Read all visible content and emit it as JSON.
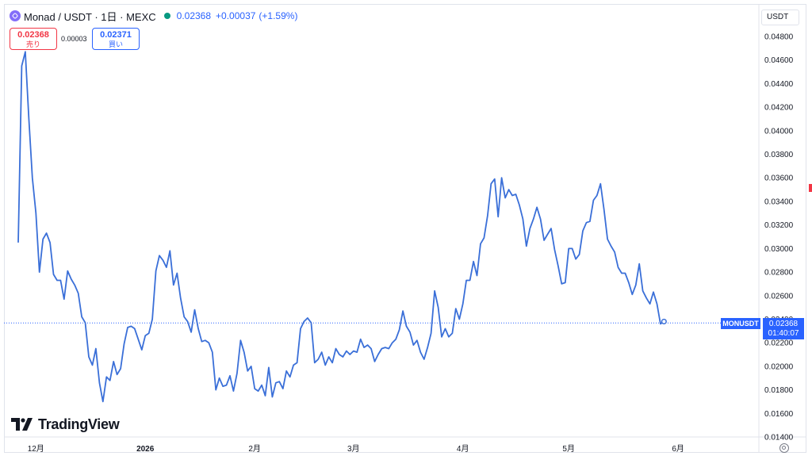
{
  "header": {
    "title": "Monad / USDT · 1日 · MEXC",
    "price": "0.02368",
    "change": "+0.00037",
    "change_pct": "(+1.59%)"
  },
  "trade": {
    "sell_price": "0.02368",
    "sell_label": "売り",
    "spread": "0.00003",
    "buy_price": "0.02371",
    "buy_label": "買い"
  },
  "currency": "USDT",
  "brand": "TradingView",
  "price_tag": {
    "symbol": "MONUSDT",
    "value": "0.02368",
    "countdown": "01:40:07"
  },
  "colors": {
    "line": "#3a6fd8",
    "accent": "#2962ff",
    "sell": "#f23645",
    "up": "#089981"
  },
  "icons": [
    "monad-logo-icon",
    "status-dot-icon",
    "tradingview-logo-icon",
    "settings-icon"
  ],
  "chart_data": {
    "type": "line",
    "title": "",
    "xlabel": "",
    "ylabel": "",
    "ylim": [
      0.014,
      0.049
    ],
    "x_ticks": [
      {
        "label": "12月",
        "day": 5
      },
      {
        "label": "2026",
        "day": 36
      },
      {
        "label": "2月",
        "day": 67
      },
      {
        "label": "3月",
        "day": 95
      },
      {
        "label": "4月",
        "day": 126
      },
      {
        "label": "5月",
        "day": 156
      },
      {
        "label": "6月",
        "day": 187
      }
    ],
    "y_ticks": [
      "0.04800",
      "0.04600",
      "0.04400",
      "0.04200",
      "0.04000",
      "0.03800",
      "0.03600",
      "0.03400",
      "0.03200",
      "0.03000",
      "0.02800",
      "0.02600",
      "0.02400",
      "0.02200",
      "0.02000",
      "0.01800",
      "0.01600",
      "0.01400"
    ],
    "y_tick_values": [
      0.048,
      0.046,
      0.044,
      0.042,
      0.04,
      0.038,
      0.036,
      0.034,
      0.032,
      0.03,
      0.028,
      0.026,
      0.024,
      0.022,
      0.02,
      0.018,
      0.016,
      0.014
    ],
    "last_price": 0.02368,
    "series": [
      {
        "values": [
          0.0305,
          0.0455,
          0.0467,
          0.041,
          0.036,
          0.033,
          0.028,
          0.0308,
          0.0313,
          0.0305,
          0.0278,
          0.0273,
          0.0273,
          0.0257,
          0.0281,
          0.0274,
          0.0269,
          0.0262,
          0.0242,
          0.0237,
          0.0208,
          0.0201,
          0.0215,
          0.0186,
          0.017,
          0.0191,
          0.0188,
          0.0204,
          0.0193,
          0.0198,
          0.0219,
          0.0233,
          0.0234,
          0.0232,
          0.0223,
          0.0214,
          0.0226,
          0.0228,
          0.024,
          0.0281,
          0.0294,
          0.029,
          0.0284,
          0.0298,
          0.0269,
          0.0279,
          0.0258,
          0.0242,
          0.0238,
          0.0229,
          0.0248,
          0.0232,
          0.0221,
          0.0222,
          0.022,
          0.0212,
          0.018,
          0.019,
          0.0183,
          0.0184,
          0.0192,
          0.0179,
          0.0194,
          0.0222,
          0.0212,
          0.0196,
          0.02,
          0.0181,
          0.0179,
          0.0184,
          0.0175,
          0.0199,
          0.0174,
          0.0186,
          0.0187,
          0.0181,
          0.0196,
          0.0191,
          0.0201,
          0.0203,
          0.0232,
          0.0238,
          0.0241,
          0.0237,
          0.0203,
          0.0206,
          0.0212,
          0.0201,
          0.0208,
          0.0203,
          0.0215,
          0.021,
          0.0208,
          0.0213,
          0.021,
          0.0213,
          0.0212,
          0.0223,
          0.0216,
          0.0218,
          0.0215,
          0.0204,
          0.021,
          0.0215,
          0.0216,
          0.0215,
          0.022,
          0.0223,
          0.0231,
          0.0247,
          0.0234,
          0.0229,
          0.0218,
          0.0222,
          0.0212,
          0.0206,
          0.0216,
          0.0228,
          0.0264,
          0.025,
          0.0225,
          0.0232,
          0.0225,
          0.0228,
          0.0249,
          0.024,
          0.0253,
          0.0273,
          0.0273,
          0.0289,
          0.0277,
          0.0304,
          0.0309,
          0.0328,
          0.0355,
          0.0359,
          0.0327,
          0.036,
          0.0343,
          0.035,
          0.0345,
          0.0346,
          0.0337,
          0.0325,
          0.0302,
          0.0317,
          0.0325,
          0.0335,
          0.0325,
          0.0307,
          0.0312,
          0.0317,
          0.0299,
          0.0285,
          0.027,
          0.0271,
          0.03,
          0.03,
          0.0291,
          0.0295,
          0.0315,
          0.0322,
          0.0323,
          0.0341,
          0.0345,
          0.0355,
          0.0333,
          0.0308,
          0.0302,
          0.0297,
          0.0284,
          0.0279,
          0.0279,
          0.0271,
          0.0261,
          0.0269,
          0.0287,
          0.0264,
          0.0258,
          0.0253,
          0.0263,
          0.0253,
          0.0236,
          0.0238
        ]
      }
    ],
    "grid": false,
    "legend": "none"
  }
}
